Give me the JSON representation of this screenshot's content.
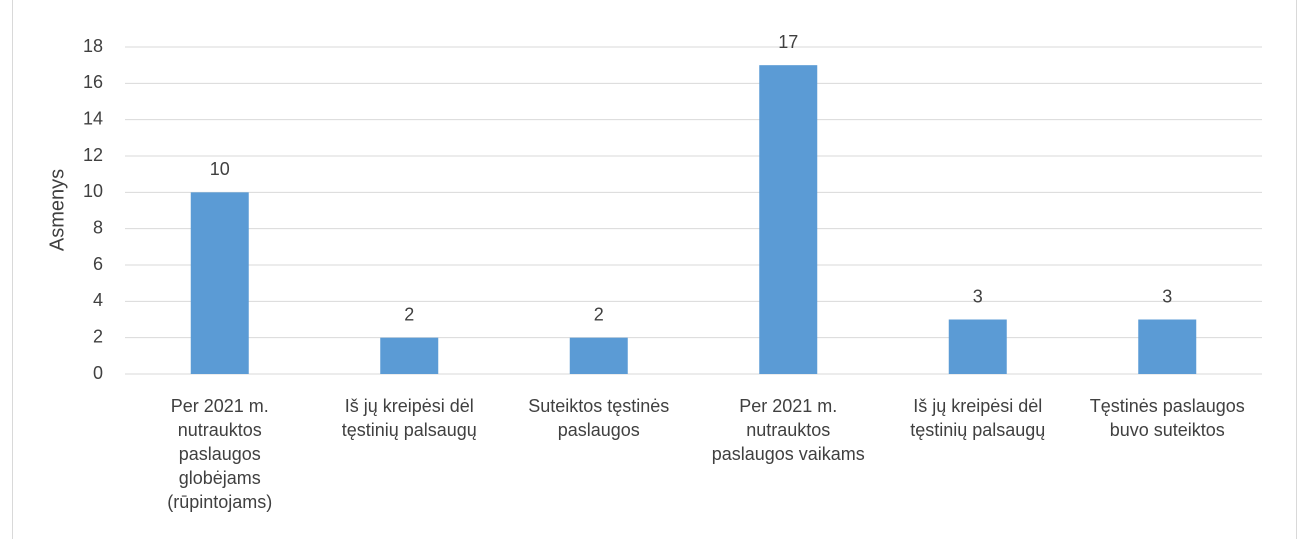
{
  "chart_data": {
    "type": "bar",
    "y_label": "Asmenys",
    "categories": [
      "Per 2021 m.\nnutrauktos\npaslaugos\nglobėjams\n(rūpintojams)",
      "Iš jų kreipėsi dėl\ntęstinių palsaugų",
      "Suteiktos tęstinės\npaslaugos",
      "Per 2021 m.\nnutrauktos\npaslaugos vaikams",
      "Iš jų kreipėsi dėl\ntęstinių palsaugų",
      "Tęstinės paslaugos\nbuvo suteiktos"
    ],
    "values": [
      10,
      2,
      2,
      17,
      3,
      3
    ],
    "color": "#5b9bd5",
    "ylim": [
      0,
      18
    ],
    "yticks": [
      0,
      2,
      4,
      6,
      8,
      10,
      12,
      14,
      16,
      18
    ],
    "grid": true
  }
}
